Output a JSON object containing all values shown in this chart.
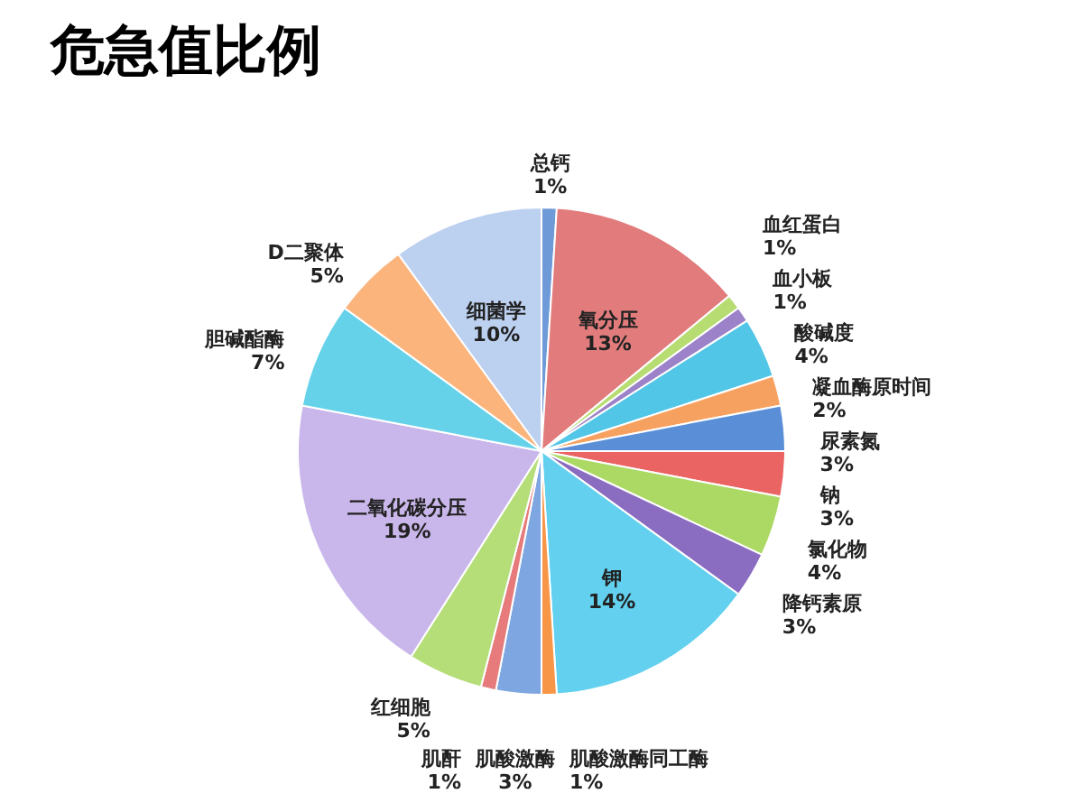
{
  "chart_data": {
    "type": "pie",
    "title": "危急值比例",
    "categories": [
      "总钙",
      "氧分压",
      "血红蛋白",
      "血小板",
      "酸碱度",
      "凝血酶原时间",
      "尿素氮",
      "钠",
      "氯化物",
      "降钙素原",
      "钾",
      "肌酸激酶同工酶",
      "肌酸激酶",
      "肌酐",
      "红细胞",
      "二氧化碳分压",
      "胆碱酯酶",
      "D二聚体",
      "细菌学"
    ],
    "values": [
      1,
      13,
      1,
      1,
      4,
      2,
      3,
      3,
      4,
      3,
      14,
      1,
      3,
      1,
      5,
      19,
      7,
      5,
      10
    ],
    "value_labels": [
      "1%",
      "13%",
      "1%",
      "1%",
      "4%",
      "2%",
      "3%",
      "3%",
      "4%",
      "3%",
      "14%",
      "1%",
      "3%",
      "1%",
      "5%",
      "19%",
      "7%",
      "5%",
      "10%"
    ],
    "colors": [
      "#6f9ad8",
      "#e27c7c",
      "#b7dc72",
      "#9c82c8",
      "#52c6e6",
      "#f7a160",
      "#5a8fd8",
      "#eb6464",
      "#acd864",
      "#8a6cc0",
      "#62d0ee",
      "#f79646",
      "#7ea6e0",
      "#e77a7a",
      "#b5dd78",
      "#c9b6ea",
      "#66d2ea",
      "#fbb47c",
      "#bcd0f0"
    ]
  }
}
